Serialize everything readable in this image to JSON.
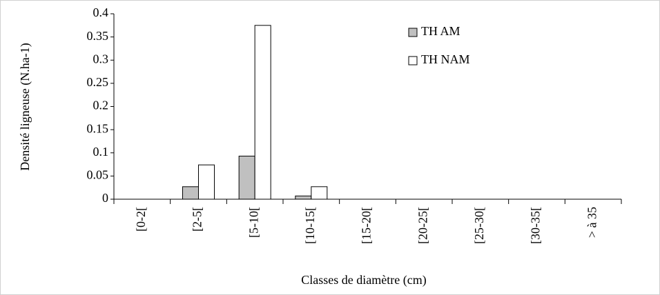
{
  "chart_data": {
    "type": "bar",
    "y_label": "Densité ligneuse (N.ha-1)",
    "x_label": "Classes de diamètre (cm)",
    "categories": [
      "[0-2[",
      "[2-5[",
      "[5-10[",
      "[10-15[",
      "[15-20[",
      "[20-25[",
      "[25-30[",
      "[30-35[",
      "> à 35"
    ],
    "series": [
      {
        "name": "TH AM",
        "color": "#c0c0c0",
        "values": [
          0,
          0.027,
          0.093,
          0.007,
          0,
          0,
          0,
          0,
          0
        ]
      },
      {
        "name": "TH NAM",
        "color": "#ffffff",
        "values": [
          0,
          0.074,
          0.375,
          0.027,
          0,
          0,
          0,
          0,
          0
        ]
      }
    ],
    "ylim": [
      0,
      0.4
    ],
    "yticks": [
      0,
      0.05,
      0.1,
      0.15,
      0.2,
      0.25,
      0.3,
      0.35,
      0.4
    ],
    "legend": "top-right"
  }
}
